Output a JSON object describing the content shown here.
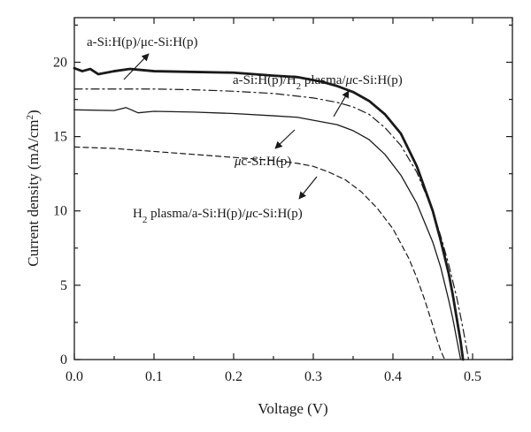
{
  "chart_data": {
    "type": "line",
    "title": "",
    "xlabel": "Voltage (V)",
    "ylabel": "Current density (mA/cm²)",
    "xlim": [
      0.0,
      0.55
    ],
    "ylim": [
      0,
      23
    ],
    "xticks": [
      0.0,
      0.1,
      0.2,
      0.3,
      0.4,
      0.5
    ],
    "xtick_labels": [
      "0.0",
      "0.1",
      "0.2",
      "0.3",
      "0.4",
      "0.5"
    ],
    "yticks": [
      0,
      5,
      10,
      15,
      20
    ],
    "ytick_labels": [
      "0",
      "5",
      "10",
      "15",
      "20"
    ],
    "grid": false,
    "legend": "none",
    "series": [
      {
        "name": "a-Si:H(p)/μc-Si:H(p)",
        "style": "thick-solid",
        "x": [
          0.0,
          0.01,
          0.02,
          0.03,
          0.05,
          0.07,
          0.1,
          0.15,
          0.2,
          0.25,
          0.28,
          0.31,
          0.33,
          0.35,
          0.37,
          0.39,
          0.41,
          0.43,
          0.45,
          0.46,
          0.47,
          0.475,
          0.48,
          0.485,
          0.488
        ],
        "y": [
          19.6,
          19.4,
          19.55,
          19.2,
          19.4,
          19.55,
          19.4,
          19.35,
          19.3,
          19.1,
          19.0,
          18.7,
          18.4,
          18.0,
          17.4,
          16.5,
          15.2,
          13.0,
          10.0,
          8.0,
          5.8,
          4.4,
          2.8,
          1.2,
          0.0
        ]
      },
      {
        "name": "a-Si:H(p)/H₂ plasma/μc-Si:H(p)",
        "style": "dash-dot",
        "x": [
          0.0,
          0.05,
          0.1,
          0.15,
          0.2,
          0.25,
          0.3,
          0.33,
          0.35,
          0.37,
          0.39,
          0.41,
          0.43,
          0.45,
          0.46,
          0.47,
          0.48,
          0.485,
          0.49,
          0.495
        ],
        "y": [
          18.2,
          18.2,
          18.2,
          18.15,
          18.05,
          17.9,
          17.6,
          17.3,
          17.0,
          16.5,
          15.6,
          14.4,
          12.6,
          10.0,
          8.3,
          6.4,
          4.2,
          2.9,
          1.5,
          0.0
        ]
      },
      {
        "name": "μc-Si:H(p)",
        "style": "solid",
        "x": [
          0.0,
          0.05,
          0.065,
          0.08,
          0.1,
          0.15,
          0.2,
          0.25,
          0.28,
          0.3,
          0.33,
          0.35,
          0.37,
          0.39,
          0.41,
          0.43,
          0.45,
          0.46,
          0.47,
          0.475,
          0.48,
          0.485
        ],
        "y": [
          16.8,
          16.75,
          16.95,
          16.6,
          16.7,
          16.65,
          16.55,
          16.4,
          16.3,
          16.1,
          15.8,
          15.4,
          14.8,
          13.8,
          12.4,
          10.5,
          7.9,
          6.2,
          4.0,
          2.8,
          1.4,
          0.0
        ]
      },
      {
        "name": "H₂ plasma/a-Si:H(p)/μc-Si:H(p)",
        "style": "dashed",
        "x": [
          0.0,
          0.05,
          0.1,
          0.15,
          0.2,
          0.25,
          0.28,
          0.3,
          0.32,
          0.34,
          0.36,
          0.38,
          0.4,
          0.42,
          0.43,
          0.44,
          0.45,
          0.455,
          0.46,
          0.465
        ],
        "y": [
          14.3,
          14.2,
          14.0,
          13.8,
          13.6,
          13.4,
          13.2,
          13.0,
          12.6,
          12.1,
          11.3,
          10.2,
          8.8,
          6.8,
          5.5,
          4.0,
          2.3,
          1.4,
          0.6,
          0.0
        ]
      }
    ],
    "annotations": [
      {
        "text": "a-Si:H(p)/μc-Si:H(p)"
      },
      {
        "text": "a-Si:H(p)/H₂ plasma/μc-Si:H(p)"
      },
      {
        "text": "μc-Si:H(p)"
      },
      {
        "text": "H₂ plasma/a-Si:H(p)/μc-Si:H(p)"
      }
    ]
  }
}
